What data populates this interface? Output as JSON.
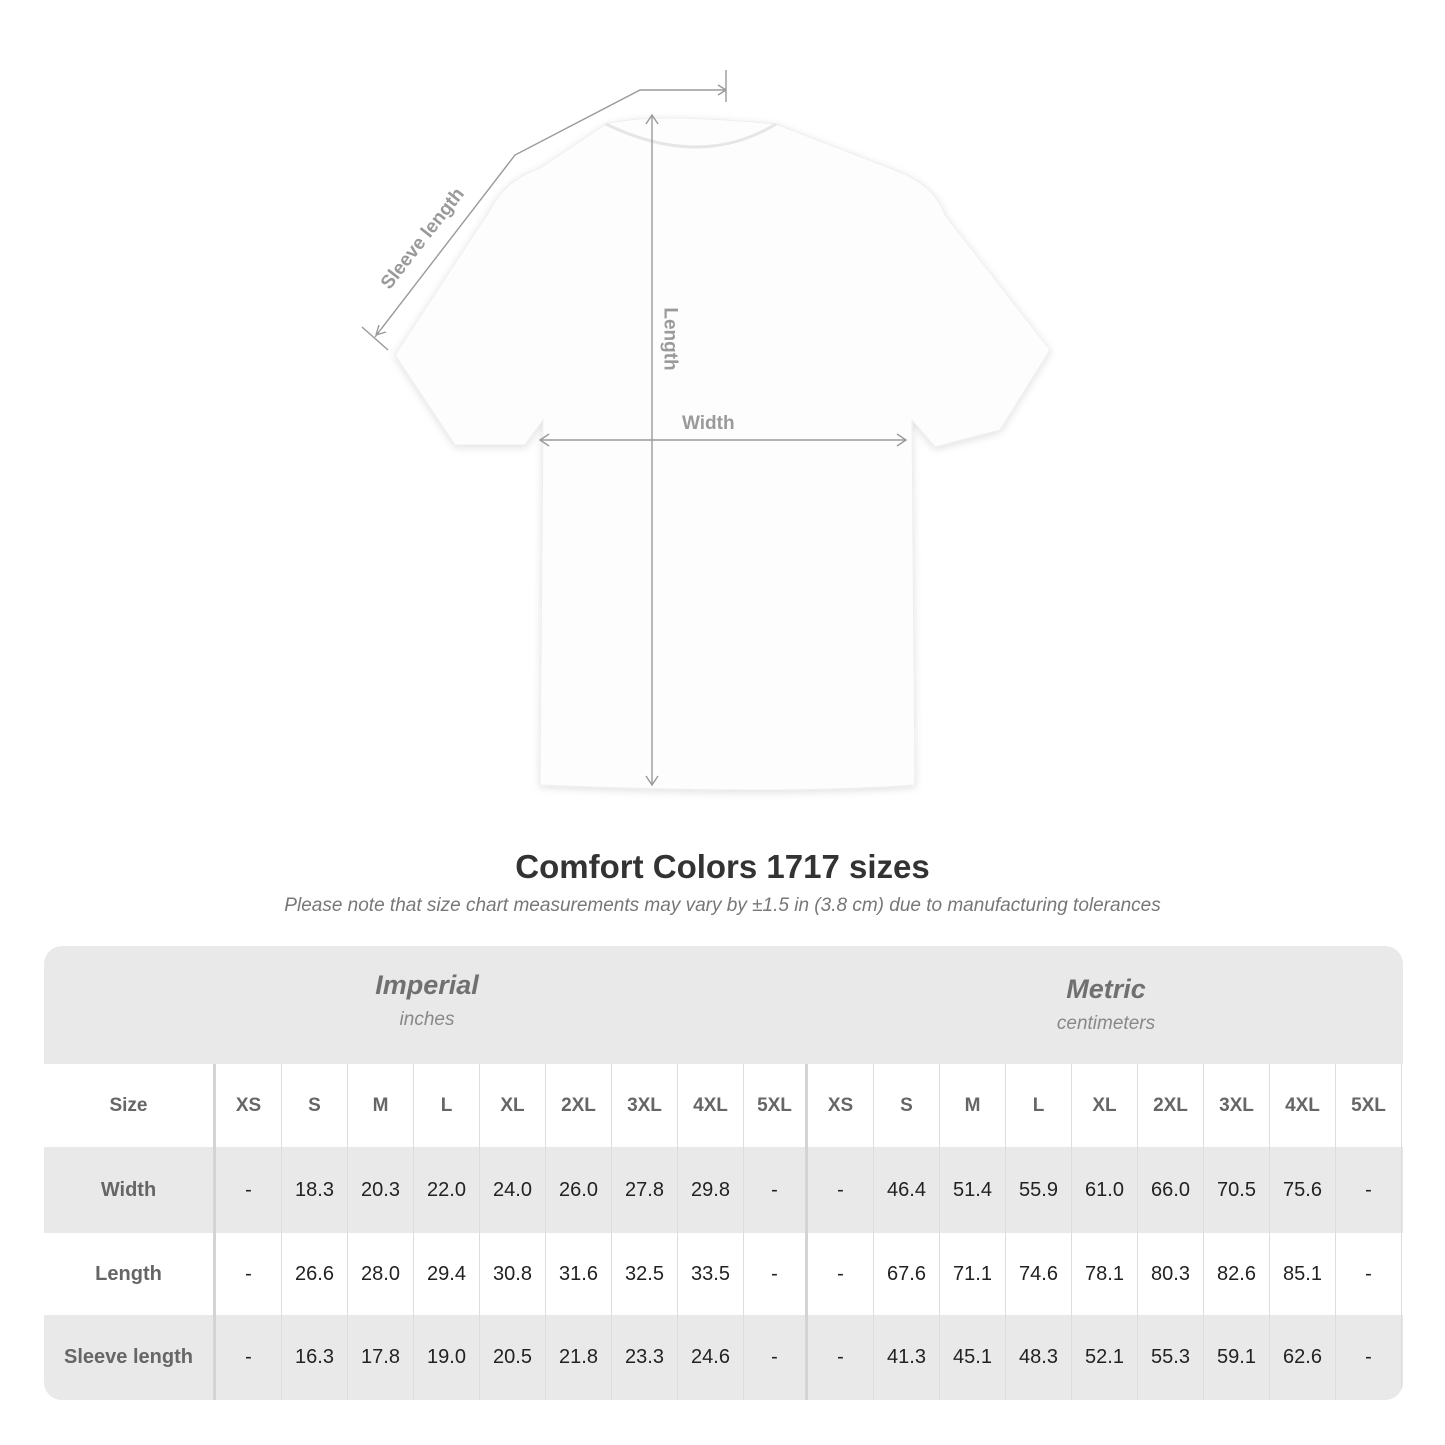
{
  "diagram": {
    "sleeve_label": "Sleeve length",
    "length_label": "Length",
    "width_label": "Width"
  },
  "title": "Comfort Colors 1717 sizes",
  "note": "Please note that size chart measurements may vary by ±1.5 in (3.8 cm) due to manufacturing tolerances",
  "table": {
    "imperial": {
      "title": "Imperial",
      "unit": "inches"
    },
    "metric": {
      "title": "Metric",
      "unit": "centimeters"
    },
    "size_label": "Size",
    "sizes": [
      "XS",
      "S",
      "M",
      "L",
      "XL",
      "2XL",
      "3XL",
      "4XL",
      "5XL"
    ],
    "rows": [
      {
        "label": "Width",
        "imperial": [
          "-",
          "18.3",
          "20.3",
          "22.0",
          "24.0",
          "26.0",
          "27.8",
          "29.8",
          "-"
        ],
        "metric": [
          "-",
          "46.4",
          "51.4",
          "55.9",
          "61.0",
          "66.0",
          "70.5",
          "75.6",
          "-"
        ]
      },
      {
        "label": "Length",
        "imperial": [
          "-",
          "26.6",
          "28.0",
          "29.4",
          "30.8",
          "31.6",
          "32.5",
          "33.5",
          "-"
        ],
        "metric": [
          "-",
          "67.6",
          "71.1",
          "74.6",
          "78.1",
          "80.3",
          "82.6",
          "85.1",
          "-"
        ]
      },
      {
        "label": "Sleeve length",
        "imperial": [
          "-",
          "16.3",
          "17.8",
          "19.0",
          "20.5",
          "21.8",
          "23.3",
          "24.6",
          "-"
        ],
        "metric": [
          "-",
          "41.3",
          "45.1",
          "48.3",
          "52.1",
          "55.3",
          "59.1",
          "62.6",
          "-"
        ]
      }
    ]
  }
}
